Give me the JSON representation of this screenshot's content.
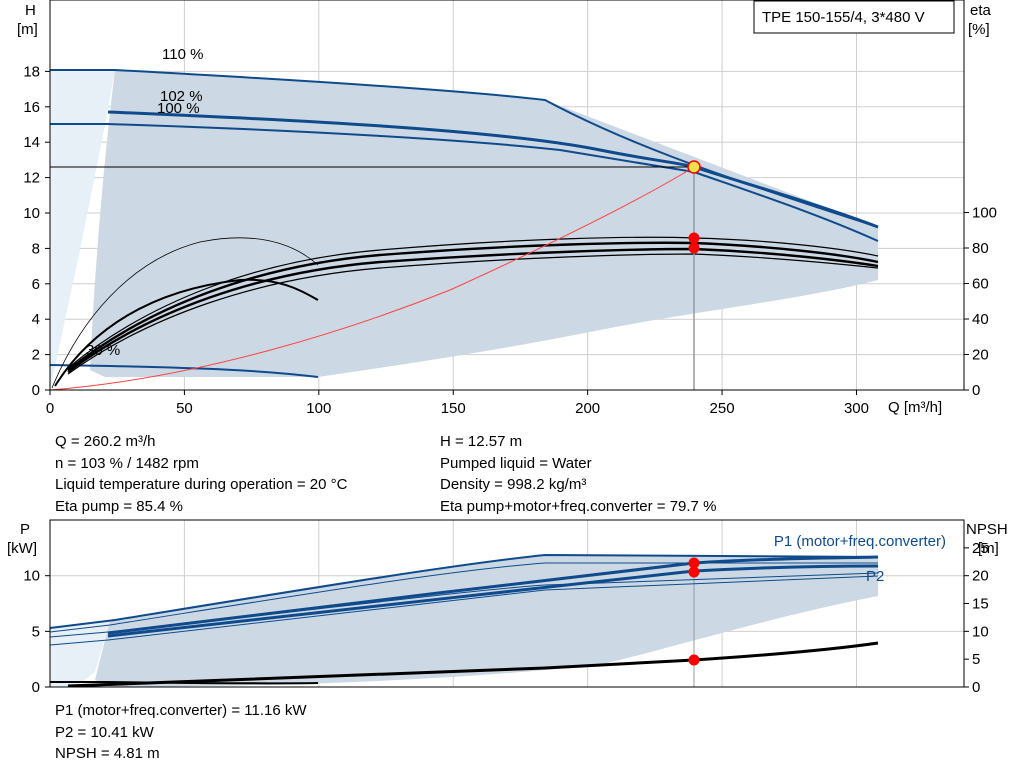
{
  "chart_data": [
    {
      "type": "line",
      "title": "TPE 150-155/4, 3*480 V",
      "xlabel": "Q [m³/h]",
      "ylabel": "H",
      "ylabel_unit": "[m]",
      "y2label": "eta",
      "y2label_unit": "[%]",
      "xlim": [
        0,
        340
      ],
      "ylim": [
        0,
        19
      ],
      "y2lim": [
        0,
        100
      ],
      "x_ticks": [
        "0",
        "50",
        "100",
        "150",
        "200",
        "250",
        "300"
      ],
      "y_ticks": [
        "0",
        "2",
        "4",
        "6",
        "8",
        "10",
        "12",
        "14",
        "16",
        "18"
      ],
      "y2_ticks": [
        "0",
        "20",
        "40",
        "60",
        "80",
        "100"
      ],
      "grid": true,
      "curve_labels": [
        "110 %",
        "102 %",
        "100 %",
        "30 %"
      ],
      "series": [
        {
          "name": "110 %",
          "x": [
            0,
            25,
            100,
            200,
            260,
            335
          ],
          "values": [
            18.1,
            18.0,
            17.5,
            16.3,
            13.3,
            9.2
          ]
        },
        {
          "name": "102 %",
          "x": [
            25,
            100,
            200,
            260.2,
            335
          ],
          "values": [
            15.7,
            15.3,
            14.1,
            12.6,
            9.2
          ]
        },
        {
          "name": "100 %",
          "x": [
            0,
            25,
            100,
            200,
            260,
            335
          ],
          "values": [
            15.0,
            15.0,
            14.6,
            13.4,
            12.0,
            8.4
          ]
        },
        {
          "name": "30 %",
          "x": [
            0,
            25,
            60,
            107
          ],
          "values": [
            1.4,
            1.4,
            1.25,
            0.75
          ]
        }
      ],
      "efficiency_values": [
        {
          "x": [
            25,
            150,
            260.2,
            335
          ],
          "values": [
            40,
            73,
            85.4,
            76
          ]
        },
        {
          "x": [
            25,
            150,
            260.2,
            335
          ],
          "values": [
            38,
            71,
            79.7,
            71
          ]
        }
      ],
      "system_curve": {
        "x": [
          0,
          100,
          200,
          260.2
        ],
        "values": [
          0,
          1.86,
          7.43,
          12.57
        ]
      },
      "duty_point": {
        "Q": 260.2,
        "H": 12.57,
        "eta_pump": 85.4,
        "eta_total": 79.7
      }
    },
    {
      "type": "line",
      "ylabel": "P",
      "ylabel_unit": "[kW]",
      "y2label": "NPSH",
      "y2label_unit": "[m]",
      "xlim": [
        0,
        340
      ],
      "ylim": [
        0,
        12.5
      ],
      "y2lim": [
        0,
        30
      ],
      "y_ticks": [
        "0",
        "5",
        "10"
      ],
      "y2_ticks": [
        "0",
        "5",
        "10",
        "15",
        "20",
        "25"
      ],
      "grid": true,
      "series": [
        {
          "name": "P1 (motor+freq.converter)",
          "x": [
            25,
            200,
            260.2,
            335
          ],
          "values": [
            5.0,
            9.2,
            11.16,
            11.55
          ]
        },
        {
          "name": "P2",
          "x": [
            25,
            200,
            260.2,
            335
          ],
          "values": [
            4.7,
            8.7,
            10.41,
            10.8
          ]
        },
        {
          "name": "NPSH",
          "x": [
            0,
            100,
            200,
            260.2,
            335
          ],
          "values": [
            1.0,
            1.8,
            3.4,
            4.81,
            7.7
          ]
        }
      ],
      "duty_point": {
        "Q": 260.2,
        "P1": 11.16,
        "P2": 10.41,
        "NPSH": 4.81
      }
    }
  ],
  "colors": {
    "curve": "#0f4b8c",
    "band": "#ccd8e4",
    "band_light": "#e6eef6",
    "point": "#ff0000",
    "duty": "#f5e14a",
    "system": "#ff4040"
  },
  "info": {
    "left": [
      "Q = 260.2 m³/h",
      "n = 103 % / 1482 rpm",
      "Liquid temperature during operation = 20 °C",
      "Eta pump = 85.4 %"
    ],
    "right": [
      "H = 12.57 m",
      "Pumped liquid = Water",
      "Density = 998.2 kg/m³",
      "Eta pump+motor+freq.converter = 79.7 %"
    ],
    "bottom": [
      "P1 (motor+freq.converter) = 11.16 kW",
      "P2 = 10.41 kW",
      "NPSH = 4.81 m"
    ]
  }
}
